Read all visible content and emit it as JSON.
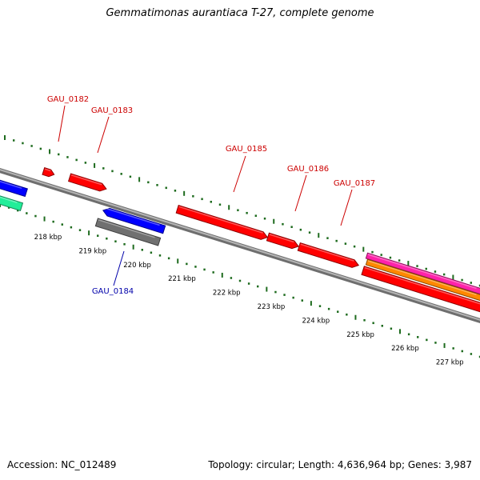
{
  "title": "Gemmatimonas aurantiaca T-27, complete genome",
  "footer": {
    "accession": "Accession: NC_012489",
    "stats": "Topology: circular; Length: 4,636,964 bp; Genes: 3,987"
  },
  "colors": {
    "background": "#ffffff",
    "forward_gene": "#ff0000",
    "reverse_gene": "#0000ff",
    "backbone": "#8c8c8c",
    "tick_marks": "#1e6b1e",
    "forward_label": "#cc0000",
    "reverse_label": "#0000aa",
    "gray_feature": "#707070",
    "teal_feature": "#22ee99",
    "pink_feature": "#ff22aa",
    "orange_feature": "#ff8800"
  },
  "scale_labels": [
    "218 kbp",
    "219 kbp",
    "220 kbp",
    "221 kbp",
    "222 kbp",
    "223 kbp",
    "224 kbp",
    "225 kbp",
    "226 kbp",
    "227 kbp"
  ],
  "gene_labels": [
    {
      "name": "GAU_0182",
      "strand": "forward"
    },
    {
      "name": "GAU_0183",
      "strand": "forward"
    },
    {
      "name": "GAU_0184",
      "strand": "reverse"
    },
    {
      "name": "GAU_0185",
      "strand": "forward"
    },
    {
      "name": "GAU_0186",
      "strand": "forward"
    },
    {
      "name": "GAU_0187",
      "strand": "forward"
    }
  ]
}
